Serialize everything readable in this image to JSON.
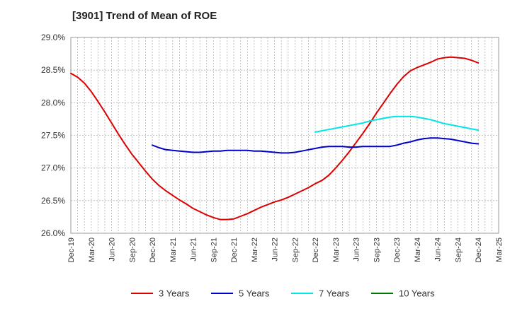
{
  "chart_data": {
    "type": "line",
    "title": "[3901]  Trend of Mean of ROE",
    "xlabel": "",
    "ylabel": "",
    "ylim": [
      26.0,
      29.0
    ],
    "yticks": [
      26.0,
      26.5,
      27.0,
      27.5,
      28.0,
      28.5,
      29.0
    ],
    "ytick_labels": [
      "26.0%",
      "26.5%",
      "27.0%",
      "27.5%",
      "28.0%",
      "28.5%",
      "29.0%"
    ],
    "x_range": [
      "Dec-19",
      "Mar-25"
    ],
    "xtick_labels": [
      "Dec-19",
      "Mar-20",
      "Jun-20",
      "Sep-20",
      "Dec-20",
      "Mar-21",
      "Jun-21",
      "Sep-21",
      "Dec-21",
      "Mar-22",
      "Jun-22",
      "Sep-22",
      "Dec-22",
      "Mar-23",
      "Jun-23",
      "Sep-23",
      "Dec-23",
      "Mar-24",
      "Jun-24",
      "Sep-24",
      "Dec-24",
      "Mar-25"
    ],
    "grid": true,
    "legend_position": "bottom",
    "series": [
      {
        "name": "3 Years",
        "color": "#dd0000",
        "x": [
          "Dec-19",
          "Jan-20",
          "Feb-20",
          "Mar-20",
          "Apr-20",
          "May-20",
          "Jun-20",
          "Jul-20",
          "Aug-20",
          "Sep-20",
          "Oct-20",
          "Nov-20",
          "Dec-20",
          "Jan-21",
          "Feb-21",
          "Mar-21",
          "Apr-21",
          "May-21",
          "Jun-21",
          "Jul-21",
          "Aug-21",
          "Sep-21",
          "Oct-21",
          "Nov-21",
          "Dec-21",
          "Jan-22",
          "Feb-22",
          "Mar-22",
          "Apr-22",
          "May-22",
          "Jun-22",
          "Jul-22",
          "Aug-22",
          "Sep-22",
          "Oct-22",
          "Nov-22",
          "Dec-22",
          "Jan-23",
          "Feb-23",
          "Mar-23",
          "Apr-23",
          "May-23",
          "Jun-23",
          "Jul-23",
          "Aug-23",
          "Sep-23",
          "Oct-23",
          "Nov-23",
          "Dec-23",
          "Jan-24",
          "Feb-24",
          "Mar-24",
          "Apr-24",
          "May-24",
          "Jun-24",
          "Jul-24",
          "Aug-24",
          "Sep-24",
          "Oct-24",
          "Nov-24",
          "Dec-24"
        ],
        "values": [
          28.45,
          28.39,
          28.3,
          28.17,
          28.02,
          27.86,
          27.69,
          27.52,
          27.36,
          27.21,
          27.08,
          26.95,
          26.83,
          26.73,
          26.65,
          26.58,
          26.51,
          26.45,
          26.38,
          26.33,
          26.28,
          26.24,
          26.21,
          26.21,
          26.22,
          26.26,
          26.3,
          26.35,
          26.4,
          26.44,
          26.48,
          26.51,
          26.55,
          26.6,
          26.65,
          26.7,
          26.76,
          26.81,
          26.89,
          27.0,
          27.12,
          27.25,
          27.39,
          27.53,
          27.68,
          27.84,
          27.99,
          28.14,
          28.28,
          28.4,
          28.49,
          28.54,
          28.58,
          28.62,
          28.67,
          28.69,
          28.7,
          28.69,
          28.68,
          28.65,
          28.61
        ]
      },
      {
        "name": "5 Years",
        "color": "#0000cc",
        "x": [
          "Dec-20",
          "Jan-21",
          "Feb-21",
          "Mar-21",
          "Apr-21",
          "May-21",
          "Jun-21",
          "Jul-21",
          "Aug-21",
          "Sep-21",
          "Oct-21",
          "Nov-21",
          "Dec-21",
          "Jan-22",
          "Feb-22",
          "Mar-22",
          "Apr-22",
          "May-22",
          "Jun-22",
          "Jul-22",
          "Aug-22",
          "Sep-22",
          "Oct-22",
          "Nov-22",
          "Dec-22",
          "Jan-23",
          "Feb-23",
          "Mar-23",
          "Apr-23",
          "May-23",
          "Jun-23",
          "Jul-23",
          "Aug-23",
          "Sep-23",
          "Oct-23",
          "Nov-23",
          "Dec-23",
          "Jan-24",
          "Feb-24",
          "Mar-24",
          "Apr-24",
          "May-24",
          "Jun-24",
          "Jul-24",
          "Aug-24",
          "Sep-24",
          "Oct-24",
          "Nov-24",
          "Dec-24"
        ],
        "values": [
          27.35,
          27.31,
          27.28,
          27.27,
          27.26,
          27.25,
          27.24,
          27.24,
          27.25,
          27.26,
          27.26,
          27.27,
          27.27,
          27.27,
          27.27,
          27.26,
          27.26,
          27.25,
          27.24,
          27.23,
          27.23,
          27.24,
          27.26,
          27.28,
          27.3,
          27.32,
          27.33,
          27.33,
          27.33,
          27.32,
          27.32,
          27.33,
          27.33,
          27.33,
          27.33,
          27.33,
          27.35,
          27.38,
          27.4,
          27.43,
          27.45,
          27.46,
          27.46,
          27.45,
          27.44,
          27.42,
          27.4,
          27.38,
          27.37
        ]
      },
      {
        "name": "7 Years",
        "color": "#00e5e5",
        "x": [
          "Dec-22",
          "Jan-23",
          "Feb-23",
          "Mar-23",
          "Apr-23",
          "May-23",
          "Jun-23",
          "Jul-23",
          "Aug-23",
          "Sep-23",
          "Oct-23",
          "Nov-23",
          "Dec-23",
          "Jan-24",
          "Feb-24",
          "Mar-24",
          "Apr-24",
          "May-24",
          "Jun-24",
          "Jul-24",
          "Aug-24",
          "Sep-24",
          "Oct-24",
          "Nov-24",
          "Dec-24"
        ],
        "values": [
          27.55,
          27.57,
          27.59,
          27.61,
          27.63,
          27.65,
          27.67,
          27.69,
          27.72,
          27.74,
          27.76,
          27.78,
          27.79,
          27.79,
          27.79,
          27.78,
          27.76,
          27.74,
          27.71,
          27.68,
          27.66,
          27.64,
          27.62,
          27.6,
          27.58
        ]
      },
      {
        "name": "10 Years",
        "color": "#007700",
        "x": [],
        "values": []
      }
    ]
  }
}
